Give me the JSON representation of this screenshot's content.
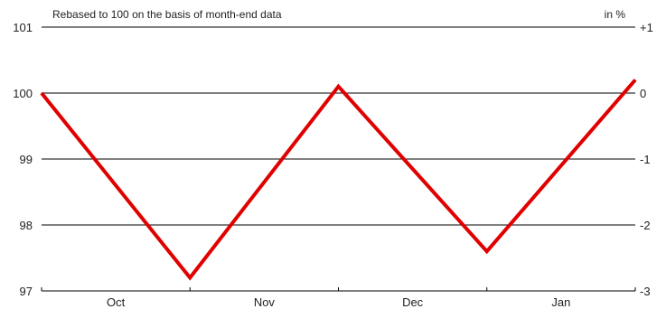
{
  "chart_data": {
    "type": "line",
    "subtitle": "Rebased to 100 on the basis of month-end data",
    "right_axis_unit": "in %",
    "categories": [
      "Oct",
      "Nov",
      "Dec",
      "Jan"
    ],
    "x": [
      0,
      1,
      2,
      3,
      4
    ],
    "series": [
      {
        "values": [
          100.0,
          97.2,
          100.1,
          97.6,
          100.2
        ],
        "color": "#e00000"
      }
    ],
    "ylim": [
      97,
      101
    ],
    "yticks_left": [
      "101",
      "100",
      "99",
      "98",
      "97"
    ],
    "yticks_right": [
      "+1",
      "0",
      "-1",
      "-2",
      "-3"
    ],
    "grid": true,
    "grid_color": "#000000"
  }
}
